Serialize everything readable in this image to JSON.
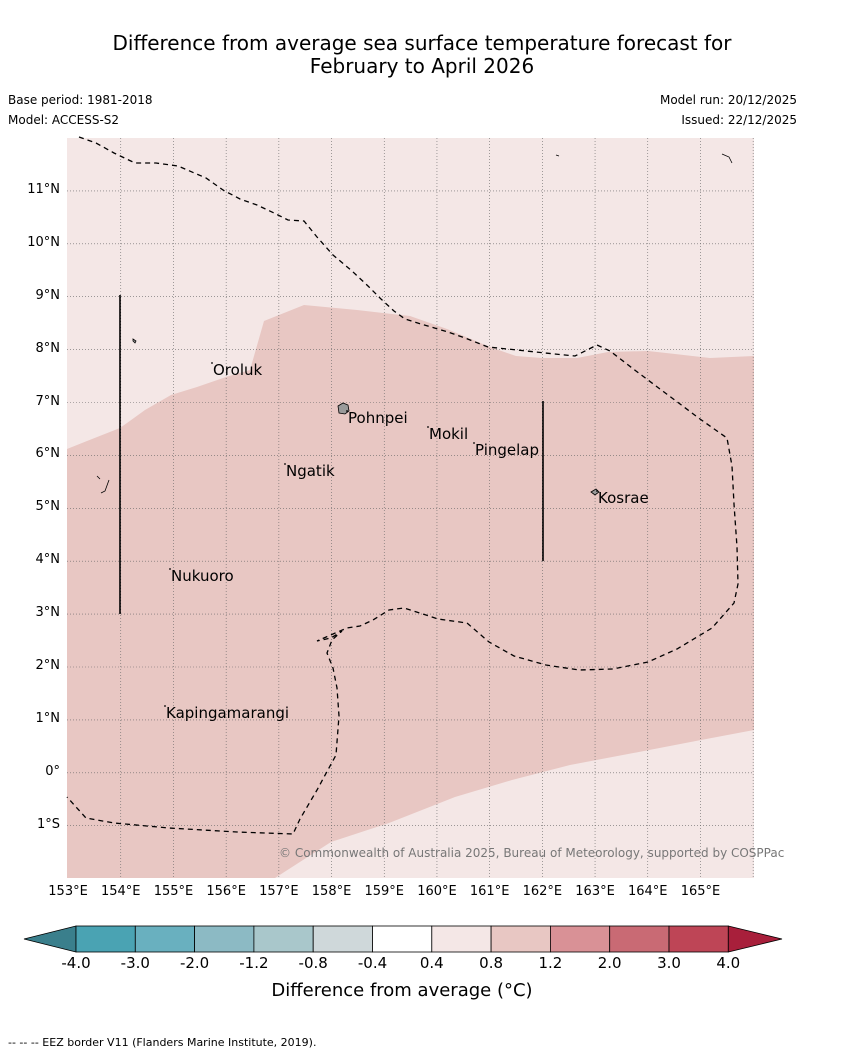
{
  "title": {
    "line1": "Difference from average sea surface temperature forecast for",
    "line2": "February to April 2026"
  },
  "meta": {
    "base_period": "Base period: 1981-2018",
    "model": "Model: ACCESS-S2",
    "model_run": "Model run: 20/12/2025",
    "issued": "Issued: 22/12/2025"
  },
  "map": {
    "lon_labels": [
      "153°E",
      "154°E",
      "155°E",
      "156°E",
      "157°E",
      "158°E",
      "159°E",
      "160°E",
      "161°E",
      "162°E",
      "163°E",
      "164°E",
      "165°E"
    ],
    "lat_labels": [
      "11°N",
      "10°N",
      "9°N",
      "8°N",
      "7°N",
      "6°N",
      "5°N",
      "4°N",
      "3°N",
      "2°N",
      "1°N",
      "0°",
      "1°S"
    ],
    "places": [
      {
        "name": "Oroluk"
      },
      {
        "name": "Pohnpei"
      },
      {
        "name": "Mokil"
      },
      {
        "name": "Pingelap"
      },
      {
        "name": "Ngatik"
      },
      {
        "name": "Kosrae"
      },
      {
        "name": "Nukuoro"
      },
      {
        "name": "Kapingamarangi"
      }
    ],
    "copyright": "© Commonwealth of Australia 2025, Bureau of Meteorology, supported by COSPPac",
    "colors": {
      "anomaly_04_08": "#f4e7e6",
      "anomaly_08_12": "#e8c7c3",
      "grid": "#555555",
      "eez": "#000000"
    }
  },
  "colorbar": {
    "ticks": [
      "-4.0",
      "-3.0",
      "-2.0",
      "-1.2",
      "-0.8",
      "-0.4",
      "0.4",
      "0.8",
      "1.2",
      "2.0",
      "3.0",
      "4.0"
    ],
    "colors": [
      "#3a7f8c",
      "#4aa3b3",
      "#69b0bf",
      "#8cbac4",
      "#a9c7cb",
      "#cfd8da",
      "#ffffff",
      "#f4e7e6",
      "#e8c7c3",
      "#d99196",
      "#c96a74",
      "#be4556",
      "#a81f3b"
    ],
    "label": "Difference from average (°C)"
  },
  "footnote": "--  --  -- EEZ border V11 (Flanders Marine Institute, 2019)."
}
